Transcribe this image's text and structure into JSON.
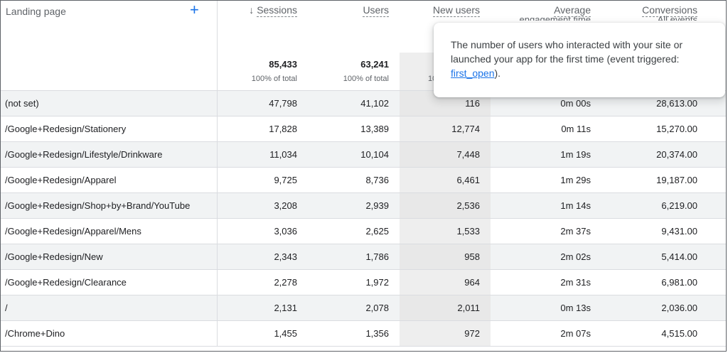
{
  "header": {
    "dimension_label": "Landing page",
    "add_icon": "plus-icon",
    "sort_icon": "arrow-down-icon",
    "columns": [
      {
        "label": "Sessions",
        "total": "85,433",
        "pct": "100% of total"
      },
      {
        "label": "Users",
        "total": "63,241",
        "pct": "100% of total"
      },
      {
        "label": "New users",
        "pct_partial": "10"
      },
      {
        "label": "Average",
        "label2": "engagement time"
      },
      {
        "label": "Conversions",
        "label2": "All events"
      }
    ]
  },
  "rows": [
    {
      "page": "(not set)",
      "sessions": "47,798",
      "users": "41,102",
      "new_users": "116",
      "engagement": "0m 00s",
      "conversions": "28,613.00"
    },
    {
      "page": "/Google+Redesign/Stationery",
      "sessions": "17,828",
      "users": "13,389",
      "new_users": "12,774",
      "engagement": "0m 11s",
      "conversions": "15,270.00"
    },
    {
      "page": "/Google+Redesign/Lifestyle/Drinkware",
      "sessions": "11,034",
      "users": "10,104",
      "new_users": "7,448",
      "engagement": "1m 19s",
      "conversions": "20,374.00"
    },
    {
      "page": "/Google+Redesign/Apparel",
      "sessions": "9,725",
      "users": "8,736",
      "new_users": "6,461",
      "engagement": "1m 29s",
      "conversions": "19,187.00"
    },
    {
      "page": "/Google+Redesign/Shop+by+Brand/YouTube",
      "sessions": "3,208",
      "users": "2,939",
      "new_users": "2,536",
      "engagement": "1m 14s",
      "conversions": "6,219.00"
    },
    {
      "page": "/Google+Redesign/Apparel/Mens",
      "sessions": "3,036",
      "users": "2,625",
      "new_users": "1,533",
      "engagement": "2m 37s",
      "conversions": "9,431.00"
    },
    {
      "page": "/Google+Redesign/New",
      "sessions": "2,343",
      "users": "1,786",
      "new_users": "958",
      "engagement": "2m 02s",
      "conversions": "5,414.00"
    },
    {
      "page": "/Google+Redesign/Clearance",
      "sessions": "2,278",
      "users": "1,972",
      "new_users": "964",
      "engagement": "2m 31s",
      "conversions": "6,981.00"
    },
    {
      "page": "/",
      "sessions": "2,131",
      "users": "2,078",
      "new_users": "2,011",
      "engagement": "0m 13s",
      "conversions": "2,036.00"
    },
    {
      "page": "/Chrome+Dino",
      "sessions": "1,455",
      "users": "1,356",
      "new_users": "972",
      "engagement": "2m 07s",
      "conversions": "4,515.00"
    }
  ],
  "tooltip": {
    "text": "The number of users who interacted with your site or launched your app for the first time (event triggered: ",
    "link": "first_open",
    "suffix": ")."
  },
  "colors": {
    "accent": "#1a73e8",
    "highlight_column": "#eeeeee",
    "row_shade": "#f1f3f4"
  }
}
